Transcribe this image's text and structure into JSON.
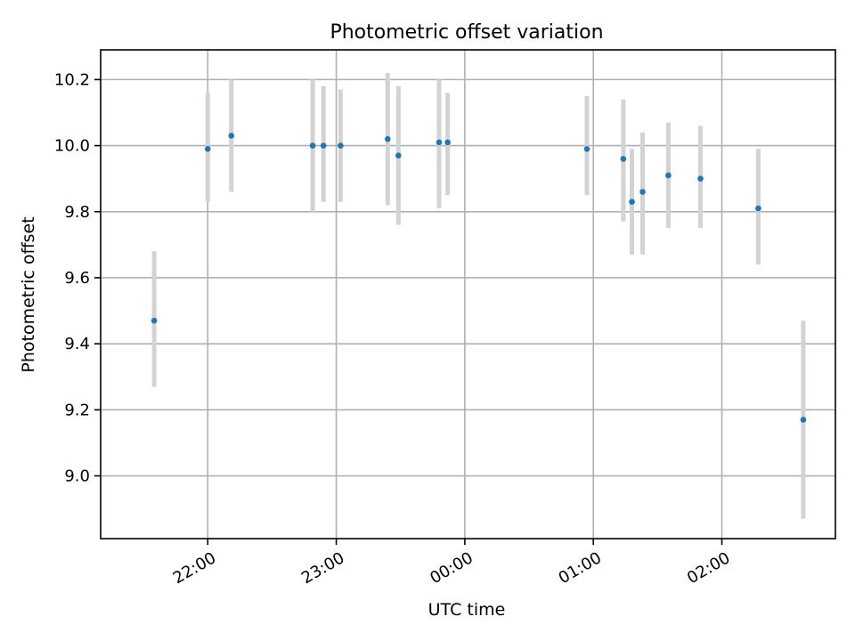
{
  "chart_data": {
    "type": "scatter",
    "title": "Photometric offset variation",
    "xlabel": "UTC time",
    "ylabel": "Photometric offset",
    "xlim": [
      "21:10",
      "02:53"
    ],
    "ylim": [
      8.81,
      10.29
    ],
    "grid": true,
    "x_ticks": [
      "22:00",
      "23:00",
      "00:00",
      "01:00",
      "02:00"
    ],
    "y_ticks": [
      "9.0",
      "9.2",
      "9.4",
      "9.6",
      "9.8",
      "10.0",
      "10.2"
    ],
    "colors": {
      "points": "#1f77b4",
      "error_bars": "#d3d3d3"
    },
    "series": [
      {
        "x": [
          "21:35",
          "22:00",
          "22:11",
          "22:49",
          "22:54",
          "23:02",
          "23:24",
          "23:29",
          "23:48",
          "23:52",
          "00:57",
          "01:14",
          "01:18",
          "01:23",
          "01:35",
          "01:50",
          "02:17",
          "02:38"
        ],
        "y": [
          9.47,
          9.99,
          10.03,
          10.0,
          10.0,
          10.0,
          10.02,
          9.97,
          10.01,
          10.01,
          9.99,
          9.96,
          9.83,
          9.86,
          9.91,
          9.9,
          9.81,
          9.17
        ],
        "err_low": [
          9.27,
          9.83,
          9.86,
          9.8,
          9.83,
          9.83,
          9.82,
          9.76,
          9.81,
          9.85,
          9.85,
          9.77,
          9.67,
          9.67,
          9.75,
          9.75,
          9.64,
          8.87
        ],
        "err_high": [
          9.68,
          10.16,
          10.2,
          10.2,
          10.18,
          10.17,
          10.22,
          10.18,
          10.2,
          10.16,
          10.15,
          10.14,
          9.99,
          10.04,
          10.07,
          10.06,
          9.99,
          9.47
        ]
      }
    ]
  }
}
